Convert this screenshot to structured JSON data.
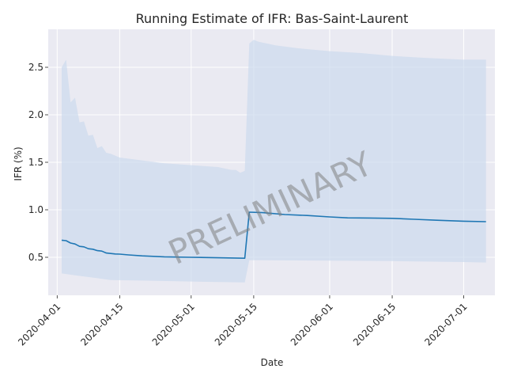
{
  "chart_data": {
    "type": "line",
    "title": "Running Estimate of IFR: Bas-Saint-Laurent",
    "xlabel": "Date",
    "ylabel": "IFR (%)",
    "x_type": "date",
    "xlim": [
      "2020-03-30",
      "2020-07-08"
    ],
    "ylim": [
      0.1,
      2.9
    ],
    "grid": true,
    "x_ticks": [
      "2020-04-01",
      "2020-04-15",
      "2020-05-01",
      "2020-05-15",
      "2020-06-01",
      "2020-06-15",
      "2020-07-01"
    ],
    "y_ticks": [
      0.5,
      1.0,
      1.5,
      2.0,
      2.5
    ],
    "y_tick_labels": [
      "0.5",
      "1.0",
      "1.5",
      "2.0",
      "2.5"
    ],
    "watermark": "PRELIMINARY",
    "colors": {
      "line": "#1f77b4",
      "band": "#c9d9ec",
      "background": "#eaeaf2",
      "grid": "#ffffff"
    },
    "series": [
      {
        "values": [
          [
            "2020-04-02",
            0.68
          ],
          [
            "2020-04-03",
            0.675
          ],
          [
            "2020-04-04",
            0.65
          ],
          [
            "2020-04-05",
            0.64
          ],
          [
            "2020-04-06",
            0.615
          ],
          [
            "2020-04-07",
            0.61
          ],
          [
            "2020-04-08",
            0.59
          ],
          [
            "2020-04-09",
            0.585
          ],
          [
            "2020-04-10",
            0.57
          ],
          [
            "2020-04-11",
            0.565
          ],
          [
            "2020-04-12",
            0.545
          ],
          [
            "2020-04-13",
            0.54
          ],
          [
            "2020-04-14",
            0.535
          ],
          [
            "2020-04-15",
            0.533
          ],
          [
            "2020-04-17",
            0.525
          ],
          [
            "2020-04-20",
            0.515
          ],
          [
            "2020-04-25",
            0.505
          ],
          [
            "2020-05-01",
            0.5
          ],
          [
            "2020-05-07",
            0.495
          ],
          [
            "2020-05-13",
            0.49
          ],
          [
            "2020-05-14",
            0.975
          ],
          [
            "2020-05-17",
            0.97
          ],
          [
            "2020-05-22",
            0.95
          ],
          [
            "2020-05-27",
            0.94
          ],
          [
            "2020-06-01",
            0.925
          ],
          [
            "2020-06-05",
            0.915
          ],
          [
            "2020-06-10",
            0.913
          ],
          [
            "2020-06-15",
            0.91
          ],
          [
            "2020-06-20",
            0.9
          ],
          [
            "2020-06-25",
            0.89
          ],
          [
            "2020-07-01",
            0.88
          ],
          [
            "2020-07-06",
            0.875
          ]
        ],
        "lower": [
          [
            "2020-04-02",
            0.33
          ],
          [
            "2020-04-05",
            0.31
          ],
          [
            "2020-04-10",
            0.28
          ],
          [
            "2020-04-13",
            0.26
          ],
          [
            "2020-04-20",
            0.255
          ],
          [
            "2020-05-01",
            0.245
          ],
          [
            "2020-05-13",
            0.235
          ],
          [
            "2020-05-14",
            0.47
          ],
          [
            "2020-06-01",
            0.465
          ],
          [
            "2020-06-15",
            0.46
          ],
          [
            "2020-07-01",
            0.45
          ],
          [
            "2020-07-06",
            0.445
          ]
        ],
        "upper": [
          [
            "2020-04-02",
            2.5
          ],
          [
            "2020-04-03",
            2.58
          ],
          [
            "2020-04-04",
            2.13
          ],
          [
            "2020-04-05",
            2.18
          ],
          [
            "2020-04-06",
            1.92
          ],
          [
            "2020-04-07",
            1.93
          ],
          [
            "2020-04-08",
            1.78
          ],
          [
            "2020-04-09",
            1.79
          ],
          [
            "2020-04-10",
            1.65
          ],
          [
            "2020-04-11",
            1.67
          ],
          [
            "2020-04-12",
            1.6
          ],
          [
            "2020-04-13",
            1.59
          ],
          [
            "2020-04-15",
            1.55
          ],
          [
            "2020-04-20",
            1.52
          ],
          [
            "2020-04-25",
            1.49
          ],
          [
            "2020-05-01",
            1.47
          ],
          [
            "2020-05-07",
            1.45
          ],
          [
            "2020-05-10",
            1.42
          ],
          [
            "2020-05-11",
            1.42
          ],
          [
            "2020-05-12",
            1.39
          ],
          [
            "2020-05-13",
            1.41
          ],
          [
            "2020-05-14",
            2.75
          ],
          [
            "2020-05-15",
            2.79
          ],
          [
            "2020-05-16",
            2.77
          ],
          [
            "2020-05-20",
            2.73
          ],
          [
            "2020-05-25",
            2.7
          ],
          [
            "2020-06-01",
            2.67
          ],
          [
            "2020-06-08",
            2.65
          ],
          [
            "2020-06-15",
            2.62
          ],
          [
            "2020-06-22",
            2.6
          ],
          [
            "2020-07-01",
            2.58
          ],
          [
            "2020-07-06",
            2.58
          ]
        ]
      }
    ]
  }
}
